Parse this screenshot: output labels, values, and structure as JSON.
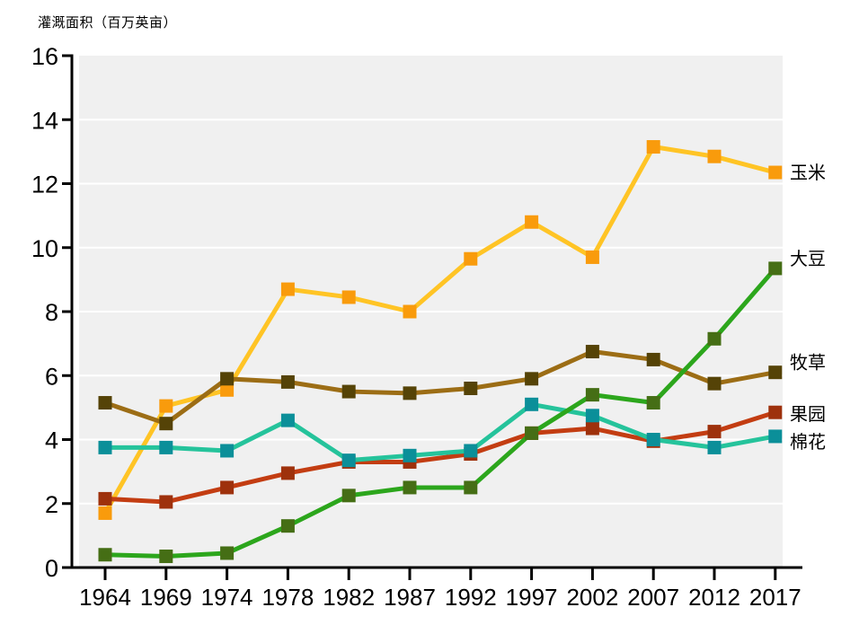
{
  "chart_data": {
    "type": "line",
    "title": "灌溉面积（百万英亩）",
    "ylabel": "灌溉面积（百万英亩）",
    "xlabel": "",
    "x": [
      1964,
      1969,
      1974,
      1978,
      1982,
      1987,
      1992,
      1997,
      2002,
      2007,
      2012,
      2017
    ],
    "ylim": [
      0,
      16
    ],
    "yticks": [
      0,
      2,
      4,
      6,
      8,
      10,
      12,
      14,
      16
    ],
    "grid": "horizontal white gridlines on light gray panel",
    "legend_position": "direct labels at right end of each line",
    "panel_background": "#F0F0F0",
    "gridline_color": "#FFFFFF",
    "axis_color": "#000000",
    "series": [
      {
        "id": "corn",
        "name": "玉米",
        "line_color": "#FFC425",
        "marker_color": "#F99B0C",
        "values": [
          1.7,
          5.05,
          5.55,
          8.7,
          8.45,
          8.0,
          9.65,
          10.8,
          9.7,
          13.15,
          12.85,
          12.35
        ]
      },
      {
        "id": "hay",
        "name": "牧草",
        "line_color": "#9C6D15",
        "marker_color": "#554307",
        "values": [
          5.15,
          4.5,
          5.9,
          5.8,
          5.5,
          5.45,
          5.6,
          5.9,
          6.75,
          6.5,
          5.75,
          6.1
        ]
      },
      {
        "id": "orchard",
        "name": "果园",
        "line_color": "#C33D12",
        "marker_color": "#9E310C",
        "values": [
          2.15,
          2.05,
          2.5,
          2.95,
          3.3,
          3.3,
          3.55,
          4.2,
          4.35,
          3.95,
          4.25,
          4.85
        ]
      },
      {
        "id": "cotton",
        "name": "棉花",
        "line_color": "#25C39B",
        "marker_color": "#0B8F99",
        "values": [
          3.75,
          3.75,
          3.65,
          4.6,
          3.35,
          3.5,
          3.65,
          5.1,
          4.75,
          4.0,
          3.75,
          4.1
        ]
      },
      {
        "id": "soybean",
        "name": "大豆",
        "line_color": "#2CA61C",
        "marker_color": "#456E15",
        "values": [
          0.4,
          0.35,
          0.45,
          1.3,
          2.25,
          2.5,
          2.5,
          4.2,
          5.4,
          5.15,
          7.15,
          9.35
        ]
      }
    ]
  }
}
